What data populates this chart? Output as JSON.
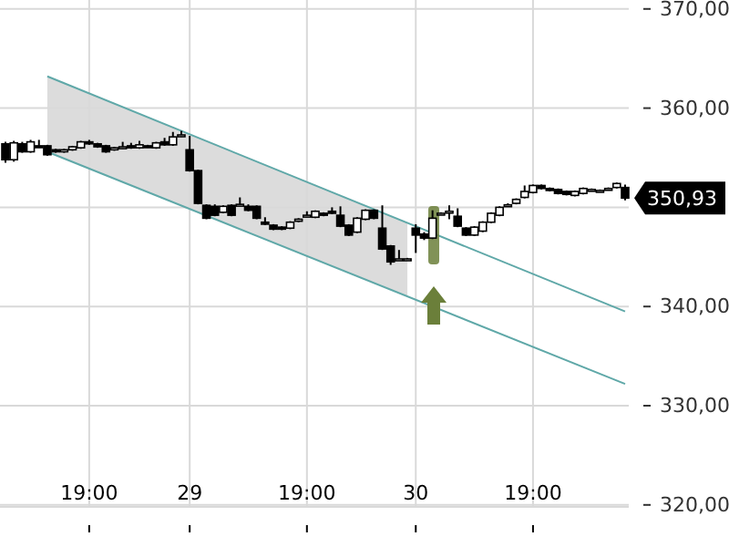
{
  "chart_data": {
    "type": "candlestick",
    "categories": [
      null,
      null,
      null,
      null,
      null,
      null,
      null,
      null,
      null,
      null,
      "19:00",
      null,
      null,
      null,
      null,
      null,
      null,
      null,
      null,
      null,
      null,
      null,
      "29",
      null,
      null,
      null,
      null,
      null,
      null,
      null,
      null,
      null,
      null,
      null,
      null,
      null,
      "19:00",
      null,
      null,
      null,
      null,
      null,
      null,
      null,
      null,
      null,
      null,
      null,
      null,
      "30",
      null,
      null,
      null,
      null,
      null,
      null,
      null,
      null,
      null,
      null,
      null,
      null,
      null,
      "19:00",
      null,
      null,
      null,
      null,
      null,
      null,
      null,
      null,
      null,
      null,
      null
    ],
    "ohlc": [
      [
        356.4,
        356.6,
        354.5,
        354.8
      ],
      [
        354.8,
        356.7,
        354.6,
        356.5
      ],
      [
        356.4,
        356.6,
        355.5,
        355.6
      ],
      [
        355.6,
        356.8,
        355.5,
        356.6
      ],
      [
        356.2,
        356.8,
        356.0,
        356.1
      ],
      [
        356.2,
        356.3,
        355.2,
        355.3
      ],
      [
        355.8,
        355.9,
        355.5,
        355.6
      ],
      [
        355.6,
        355.9,
        355.5,
        355.8
      ],
      [
        355.8,
        356.2,
        355.7,
        356.1
      ],
      [
        356.0,
        356.7,
        355.9,
        356.6
      ],
      [
        356.6,
        356.8,
        356.3,
        356.4
      ],
      [
        356.4,
        356.5,
        356.0,
        356.1
      ],
      [
        356.2,
        356.3,
        355.5,
        355.6
      ],
      [
        355.8,
        356.1,
        355.7,
        356.0
      ],
      [
        356.0,
        356.6,
        355.9,
        356.1
      ],
      [
        356.2,
        356.5,
        355.9,
        356.0
      ],
      [
        356.0,
        356.7,
        355.9,
        356.3
      ],
      [
        356.2,
        356.3,
        356.0,
        356.1
      ],
      [
        356.0,
        356.6,
        355.9,
        356.5
      ],
      [
        356.6,
        357.0,
        356.2,
        356.3
      ],
      [
        356.3,
        357.6,
        356.2,
        357.1
      ],
      [
        357.2,
        357.7,
        357.1,
        357.3
      ],
      [
        355.8,
        357.2,
        353.6,
        353.7
      ],
      [
        353.7,
        353.8,
        350.3,
        350.4
      ],
      [
        350.2,
        350.3,
        348.8,
        348.9
      ],
      [
        350.1,
        350.3,
        349.1,
        349.2
      ],
      [
        349.5,
        350.2,
        349.4,
        350.1
      ],
      [
        350.2,
        350.3,
        349.1,
        349.2
      ],
      [
        350.3,
        351.0,
        350.2,
        350.3
      ],
      [
        350.1,
        350.3,
        349.6,
        349.7
      ],
      [
        350.1,
        350.2,
        348.8,
        348.9
      ],
      [
        348.5,
        349.0,
        348.2,
        348.3
      ],
      [
        348.2,
        348.3,
        347.7,
        347.8
      ],
      [
        348.0,
        348.1,
        347.7,
        347.8
      ],
      [
        347.9,
        348.6,
        347.8,
        348.5
      ],
      [
        348.6,
        348.9,
        348.5,
        348.8
      ],
      [
        349.1,
        349.6,
        349.0,
        349.2
      ],
      [
        349.0,
        349.7,
        348.9,
        349.6
      ],
      [
        349.4,
        349.5,
        349.1,
        349.2
      ],
      [
        349.6,
        350.0,
        349.3,
        349.4
      ],
      [
        349.2,
        350.1,
        348.0,
        348.1
      ],
      [
        348.2,
        348.3,
        347.1,
        347.2
      ],
      [
        347.5,
        349.0,
        347.4,
        348.9
      ],
      [
        348.8,
        349.8,
        348.7,
        349.7
      ],
      [
        349.7,
        349.8,
        348.8,
        348.9
      ],
      [
        347.9,
        350.2,
        345.7,
        345.8
      ],
      [
        346.1,
        346.2,
        344.2,
        344.5
      ],
      [
        344.8,
        345.7,
        344.7,
        344.8
      ],
      [
        344.8,
        344.9,
        344.7,
        344.8
      ],
      [
        347.9,
        348.3,
        345.4,
        347.2
      ],
      [
        347.3,
        347.5,
        346.7,
        346.9
      ],
      [
        346.9,
        349.7,
        346.8,
        348.9
      ],
      [
        349.4,
        349.5,
        349.3,
        349.4
      ],
      [
        349.5,
        350.2,
        348.8,
        349.6
      ],
      [
        349.1,
        349.9,
        348.0,
        348.1
      ],
      [
        347.9,
        348.0,
        347.1,
        347.2
      ],
      [
        347.2,
        348.1,
        347.1,
        348.0
      ],
      [
        347.6,
        348.6,
        347.5,
        348.5
      ],
      [
        348.5,
        349.5,
        348.4,
        349.4
      ],
      [
        349.2,
        350.1,
        349.1,
        350.0
      ],
      [
        350.2,
        350.4,
        350.1,
        350.25
      ],
      [
        350.4,
        350.9,
        350.3,
        350.8
      ],
      [
        351.0,
        352.2,
        350.9,
        351.6
      ],
      [
        351.5,
        352.3,
        351.4,
        352.2
      ],
      [
        352.2,
        352.3,
        351.8,
        351.9
      ],
      [
        351.9,
        352.0,
        351.6,
        351.7
      ],
      [
        351.8,
        351.9,
        351.3,
        351.4
      ],
      [
        351.6,
        351.7,
        351.2,
        351.3
      ],
      [
        351.2,
        351.7,
        351.1,
        351.6
      ],
      [
        351.4,
        352.0,
        351.3,
        351.9
      ],
      [
        351.8,
        351.9,
        351.7,
        351.8
      ],
      [
        351.7,
        351.8,
        351.6,
        351.7
      ],
      [
        351.8,
        352.0,
        351.7,
        351.9
      ],
      [
        352.0,
        352.5,
        351.9,
        352.4
      ],
      [
        352.0,
        352.3,
        350.7,
        350.93
      ]
    ],
    "color": "#000000",
    "series": [
      {
        "type": "line",
        "values": [
          null,
          null,
          null,
          null,
          null,
          363.2,
          null,
          null,
          null,
          null,
          null,
          null,
          null,
          null,
          null,
          null,
          null,
          null,
          null,
          null,
          null,
          null,
          null,
          null,
          null,
          null,
          null,
          null,
          null,
          null,
          null,
          null,
          null,
          null,
          null,
          null,
          null,
          null,
          null,
          null,
          null,
          null,
          null,
          null,
          null,
          null,
          null,
          null,
          null,
          null,
          null,
          null,
          null,
          null,
          null,
          null,
          null,
          null,
          null,
          null,
          null,
          null,
          null,
          null,
          null,
          null,
          null,
          null,
          null,
          null,
          null,
          null,
          null,
          null,
          339.5
        ],
        "color": "#5fa8a8"
      },
      {
        "type": "line",
        "values": [
          null,
          null,
          null,
          null,
          null,
          355.6,
          null,
          null,
          null,
          null,
          null,
          null,
          null,
          null,
          null,
          null,
          null,
          null,
          null,
          null,
          null,
          null,
          null,
          null,
          null,
          null,
          null,
          null,
          null,
          null,
          null,
          null,
          null,
          null,
          null,
          null,
          null,
          null,
          null,
          null,
          null,
          null,
          null,
          null,
          null,
          null,
          null,
          null,
          null,
          null,
          null,
          null,
          null,
          null,
          null,
          null,
          null,
          null,
          null,
          null,
          null,
          null,
          null,
          null,
          null,
          null,
          null,
          null,
          null,
          null,
          null,
          null,
          null,
          null,
          332.2
        ],
        "color": "#5fa8a8",
        "lower": [
          null,
          null,
          null,
          null,
          null,
          355.6,
          null,
          null,
          null,
          null,
          null,
          null,
          null,
          null,
          null,
          null,
          null,
          null,
          null,
          null,
          null,
          null,
          null,
          null,
          null,
          null,
          null,
          null,
          null,
          null,
          null,
          null,
          null,
          null,
          null,
          null,
          null,
          null,
          null,
          null,
          null,
          null,
          null,
          null,
          null,
          null,
          null,
          null,
          341.0,
          null,
          null,
          null,
          null,
          null,
          null,
          null,
          null,
          null,
          null,
          null,
          null,
          null,
          null,
          null,
          null,
          null,
          null,
          null,
          null,
          null,
          null,
          null,
          null,
          null,
          null
        ],
        "upper": [
          null,
          null,
          null,
          null,
          null,
          363.2,
          null,
          null,
          null,
          null,
          null,
          null,
          null,
          null,
          null,
          null,
          null,
          null,
          null,
          null,
          null,
          null,
          null,
          null,
          null,
          null,
          null,
          null,
          null,
          null,
          null,
          null,
          null,
          null,
          null,
          null,
          null,
          null,
          null,
          null,
          null,
          null,
          null,
          null,
          null,
          null,
          null,
          null,
          348.4,
          null,
          null,
          null,
          null,
          null,
          null,
          null,
          null,
          null,
          null,
          null,
          null,
          null,
          null,
          null,
          null,
          null,
          null,
          null,
          null,
          null,
          null,
          null,
          null,
          null,
          null
        ]
      }
    ],
    "ylim": [
      319.8,
      370.9
    ],
    "yticks": [
      {
        "value": 320,
        "label": "320,00"
      },
      {
        "value": 330,
        "label": "330,00"
      },
      {
        "value": 340,
        "label": "340,00"
      },
      {
        "value": 350,
        "label": null
      },
      {
        "value": 360,
        "label": "360,00"
      },
      {
        "value": 370,
        "label": "370,00"
      }
    ],
    "grid": true,
    "annotations": [
      "350,93"
    ]
  }
}
